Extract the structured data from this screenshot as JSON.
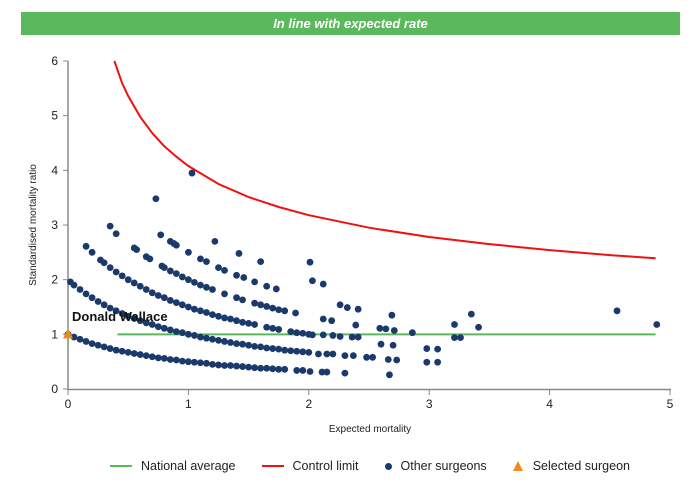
{
  "banner": {
    "text": "In line with expected rate",
    "color": "#5cb85c"
  },
  "chart_data": {
    "type": "scatter",
    "title": "",
    "xlabel": "Expected mortality",
    "ylabel": "Standardised mortality ratio",
    "xlim": [
      0,
      5
    ],
    "ylim": [
      0,
      6
    ],
    "xticks": [
      "0",
      "1",
      "2",
      "3",
      "4",
      "5"
    ],
    "yticks": [
      "0",
      "1",
      "2",
      "3",
      "4",
      "5",
      "6"
    ],
    "grid": false,
    "legend_position": "bottom",
    "legend": [
      "National average",
      "Control limit",
      "Other surgeons",
      "Selected surgeon"
    ],
    "colors": {
      "national_average": "#5cb85c",
      "control_limit": "#ee1111",
      "other_surgeons": "#1b3a6b",
      "selected_surgeon": "#f08a1c"
    },
    "national_average": {
      "name": "National average",
      "value": 1,
      "x_range": [
        0.41,
        4.88
      ]
    },
    "control_limit": {
      "name": "Control limit",
      "points": [
        [
          0.385,
          6.0
        ],
        [
          0.45,
          5.59
        ],
        [
          0.5,
          5.36
        ],
        [
          0.6,
          4.98
        ],
        [
          0.7,
          4.68
        ],
        [
          0.8,
          4.44
        ],
        [
          0.9,
          4.25
        ],
        [
          1.0,
          4.08
        ],
        [
          1.25,
          3.75
        ],
        [
          1.5,
          3.51
        ],
        [
          1.75,
          3.33
        ],
        [
          2.0,
          3.18
        ],
        [
          2.5,
          2.95
        ],
        [
          3.0,
          2.78
        ],
        [
          3.5,
          2.65
        ],
        [
          4.0,
          2.54
        ],
        [
          4.5,
          2.45
        ],
        [
          4.88,
          2.39
        ]
      ]
    },
    "selected_surgeon": {
      "name": "Selected surgeon",
      "label": "Donald Wallace",
      "point": [
        0,
        1
      ]
    },
    "other_surgeons": {
      "name": "Other surgeons",
      "points": [
        [
          0,
          1.0
        ],
        [
          0.05,
          0.95
        ],
        [
          0.1,
          0.91
        ],
        [
          0.15,
          0.87
        ],
        [
          0.2,
          0.83
        ],
        [
          0.25,
          0.8
        ],
        [
          0.3,
          0.77
        ],
        [
          0.35,
          0.74
        ],
        [
          0.4,
          0.71
        ],
        [
          0.45,
          0.69
        ],
        [
          0.5,
          0.67
        ],
        [
          0.55,
          0.65
        ],
        [
          0.6,
          0.63
        ],
        [
          0.65,
          0.61
        ],
        [
          0.7,
          0.59
        ],
        [
          0.75,
          0.57
        ],
        [
          0.8,
          0.56
        ],
        [
          0.85,
          0.54
        ],
        [
          0.9,
          0.53
        ],
        [
          0.95,
          0.51
        ],
        [
          1.0,
          0.5
        ],
        [
          1.05,
          0.49
        ],
        [
          1.1,
          0.48
        ],
        [
          1.15,
          0.47
        ],
        [
          1.2,
          0.45
        ],
        [
          1.25,
          0.44
        ],
        [
          1.3,
          0.43
        ],
        [
          1.35,
          0.43
        ],
        [
          1.4,
          0.42
        ],
        [
          1.45,
          0.41
        ],
        [
          1.5,
          0.4
        ],
        [
          1.55,
          0.39
        ],
        [
          1.6,
          0.38
        ],
        [
          1.65,
          0.38
        ],
        [
          1.7,
          0.37
        ],
        [
          1.75,
          0.36
        ],
        [
          1.8,
          0.36
        ],
        [
          1.9,
          0.34
        ],
        [
          1.95,
          0.34
        ],
        [
          2.01,
          0.32
        ],
        [
          2.11,
          0.31
        ],
        [
          2.15,
          0.31
        ],
        [
          2.3,
          0.29
        ],
        [
          2.67,
          0.26
        ],
        [
          0.02,
          1.96
        ],
        [
          0.05,
          1.9
        ],
        [
          0.1,
          1.82
        ],
        [
          0.15,
          1.74
        ],
        [
          0.2,
          1.67
        ],
        [
          0.25,
          1.6
        ],
        [
          0.3,
          1.54
        ],
        [
          0.35,
          1.48
        ],
        [
          0.4,
          1.43
        ],
        [
          0.45,
          1.38
        ],
        [
          0.5,
          1.33
        ],
        [
          0.55,
          1.29
        ],
        [
          0.6,
          1.25
        ],
        [
          0.65,
          1.21
        ],
        [
          0.7,
          1.18
        ],
        [
          0.75,
          1.14
        ],
        [
          0.8,
          1.11
        ],
        [
          0.85,
          1.08
        ],
        [
          0.9,
          1.05
        ],
        [
          0.95,
          1.03
        ],
        [
          1.0,
          1.0
        ],
        [
          1.05,
          0.98
        ],
        [
          1.1,
          0.95
        ],
        [
          1.15,
          0.93
        ],
        [
          1.2,
          0.91
        ],
        [
          1.25,
          0.89
        ],
        [
          1.3,
          0.87
        ],
        [
          1.35,
          0.85
        ],
        [
          1.4,
          0.83
        ],
        [
          1.45,
          0.82
        ],
        [
          1.5,
          0.8
        ],
        [
          1.55,
          0.78
        ],
        [
          1.6,
          0.77
        ],
        [
          1.65,
          0.75
        ],
        [
          1.7,
          0.74
        ],
        [
          1.75,
          0.73
        ],
        [
          1.8,
          0.71
        ],
        [
          1.85,
          0.7
        ],
        [
          1.9,
          0.69
        ],
        [
          1.95,
          0.68
        ],
        [
          2.0,
          0.67
        ],
        [
          2.08,
          0.64
        ],
        [
          2.15,
          0.64
        ],
        [
          2.2,
          0.64
        ],
        [
          2.3,
          0.61
        ],
        [
          2.37,
          0.61
        ],
        [
          2.48,
          0.58
        ],
        [
          2.53,
          0.58
        ],
        [
          2.66,
          0.54
        ],
        [
          2.73,
          0.53
        ],
        [
          2.98,
          0.49
        ],
        [
          3.07,
          0.49
        ],
        [
          0.15,
          2.61
        ],
        [
          0.2,
          2.5
        ],
        [
          0.27,
          2.36
        ],
        [
          0.3,
          2.31
        ],
        [
          0.35,
          2.22
        ],
        [
          0.4,
          2.14
        ],
        [
          0.45,
          2.07
        ],
        [
          0.5,
          2.0
        ],
        [
          0.55,
          1.94
        ],
        [
          0.6,
          1.88
        ],
        [
          0.65,
          1.82
        ],
        [
          0.7,
          1.76
        ],
        [
          0.75,
          1.71
        ],
        [
          0.8,
          1.67
        ],
        [
          0.85,
          1.62
        ],
        [
          0.9,
          1.58
        ],
        [
          0.95,
          1.54
        ],
        [
          1.0,
          1.5
        ],
        [
          1.05,
          1.46
        ],
        [
          1.1,
          1.43
        ],
        [
          1.15,
          1.4
        ],
        [
          1.2,
          1.36
        ],
        [
          1.25,
          1.33
        ],
        [
          1.3,
          1.3
        ],
        [
          1.35,
          1.28
        ],
        [
          1.4,
          1.25
        ],
        [
          1.45,
          1.22
        ],
        [
          1.5,
          1.2
        ],
        [
          1.55,
          1.18
        ],
        [
          1.65,
          1.13
        ],
        [
          1.7,
          1.11
        ],
        [
          1.75,
          1.09
        ],
        [
          1.85,
          1.05
        ],
        [
          1.9,
          1.03
        ],
        [
          1.95,
          1.02
        ],
        [
          2.0,
          1.0
        ],
        [
          2.03,
          0.99
        ],
        [
          2.12,
          0.99
        ],
        [
          2.2,
          0.98
        ],
        [
          2.26,
          0.96
        ],
        [
          2.36,
          0.95
        ],
        [
          2.41,
          0.95
        ],
        [
          2.6,
          0.82
        ],
        [
          2.7,
          0.8
        ],
        [
          2.98,
          0.74
        ],
        [
          3.07,
          0.73
        ],
        [
          3.21,
          0.94
        ],
        [
          3.26,
          0.94
        ],
        [
          0.35,
          2.98
        ],
        [
          0.4,
          2.84
        ],
        [
          0.55,
          2.58
        ],
        [
          0.57,
          2.55
        ],
        [
          0.65,
          2.42
        ],
        [
          0.68,
          2.38
        ],
        [
          0.78,
          2.25
        ],
        [
          0.8,
          2.22
        ],
        [
          0.85,
          2.16
        ],
        [
          0.9,
          2.11
        ],
        [
          0.95,
          2.05
        ],
        [
          1.0,
          2.0
        ],
        [
          1.05,
          1.95
        ],
        [
          1.1,
          1.9
        ],
        [
          1.15,
          1.86
        ],
        [
          1.2,
          1.82
        ],
        [
          1.3,
          1.74
        ],
        [
          1.4,
          1.67
        ],
        [
          1.45,
          1.63
        ],
        [
          1.55,
          1.57
        ],
        [
          1.6,
          1.54
        ],
        [
          1.65,
          1.51
        ],
        [
          1.7,
          1.48
        ],
        [
          1.75,
          1.45
        ],
        [
          1.8,
          1.43
        ],
        [
          1.89,
          1.39
        ],
        [
          2.12,
          1.28
        ],
        [
          2.19,
          1.25
        ],
        [
          2.39,
          1.17
        ],
        [
          2.59,
          1.11
        ],
        [
          2.64,
          1.1
        ],
        [
          2.71,
          1.07
        ],
        [
          2.86,
          1.03
        ],
        [
          0.77,
          2.82
        ],
        [
          0.85,
          2.7
        ],
        [
          0.88,
          2.66
        ],
        [
          0.9,
          2.63
        ],
        [
          1.0,
          2.5
        ],
        [
          1.1,
          2.38
        ],
        [
          1.15,
          2.33
        ],
        [
          1.25,
          2.22
        ],
        [
          1.3,
          2.17
        ],
        [
          1.4,
          2.08
        ],
        [
          1.46,
          2.04
        ],
        [
          1.55,
          1.96
        ],
        [
          1.65,
          1.88
        ],
        [
          1.73,
          1.83
        ],
        [
          2.03,
          1.98
        ],
        [
          2.12,
          1.92
        ],
        [
          2.26,
          1.54
        ],
        [
          2.32,
          1.49
        ],
        [
          2.41,
          1.46
        ],
        [
          2.69,
          1.35
        ],
        [
          3.21,
          1.18
        ],
        [
          3.35,
          1.37
        ],
        [
          3.41,
          1.13
        ],
        [
          4.56,
          1.43
        ],
        [
          4.89,
          1.18
        ],
        [
          0.73,
          3.48
        ],
        [
          1.03,
          3.95
        ],
        [
          1.22,
          2.7
        ],
        [
          1.42,
          2.48
        ],
        [
          1.6,
          2.33
        ],
        [
          2.01,
          2.32
        ]
      ]
    }
  }
}
